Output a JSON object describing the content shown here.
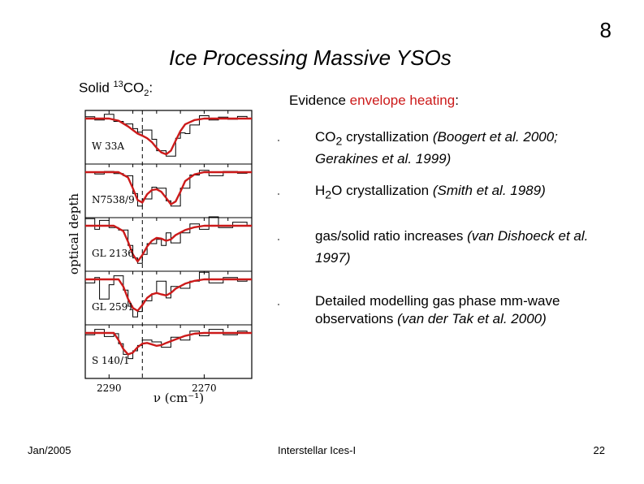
{
  "slide": {
    "number": "8",
    "title": "Ice Processing Massive YSOs"
  },
  "figure_label": {
    "prefix": "Solid ",
    "isotope": "13",
    "molecule": "CO",
    "subscript": "2",
    "suffix": ":"
  },
  "evidence": {
    "prefix": "Evidence ",
    "highlight": "envelope heating",
    "suffix": ":"
  },
  "bullets": [
    {
      "pre": "CO",
      "sub": "2",
      "post": " crystallization ",
      "cite": "(Boogert et al. 2000; Gerakines et al. 1999)"
    },
    {
      "pre": "H",
      "sub": "2",
      "post": "O crystallization ",
      "cite": "(Smith et al. 1989)"
    },
    {
      "pre": "gas/solid ratio increases  ",
      "sub": "",
      "post": "",
      "cite": "(van Dishoeck et al. 1997)"
    },
    {
      "pre": "Detailed modelling gas phase mm-wave observations ",
      "sub": "",
      "post": "",
      "cite": "(van der Tak et al. 2000)"
    }
  ],
  "footer": {
    "date": "Jan/2005",
    "course": "Interstellar Ices-I",
    "page": "22"
  },
  "colors": {
    "model_curve": "#cc1a1a",
    "highlight": "#cc1a1a"
  },
  "chart_data": {
    "type": "line",
    "title": "",
    "xlabel": "ν (cm⁻¹)",
    "ylabel": "optical depth",
    "x_reversed": true,
    "xlim": [
      2295,
      2260
    ],
    "xticks": [
      2290,
      2270
    ],
    "reference_line_x": 2283,
    "series": [
      {
        "name": "W 33A",
        "model": [
          [
            2295,
            0
          ],
          [
            2290,
            0
          ],
          [
            2288,
            0.06
          ],
          [
            2286,
            0.22
          ],
          [
            2284,
            0.42
          ],
          [
            2283,
            0.48
          ],
          [
            2282,
            0.55
          ],
          [
            2281,
            0.66
          ],
          [
            2280,
            0.82
          ],
          [
            2279,
            0.95
          ],
          [
            2278,
            1.0
          ],
          [
            2277,
            0.9
          ],
          [
            2276,
            0.62
          ],
          [
            2275,
            0.35
          ],
          [
            2274,
            0.16
          ],
          [
            2272,
            0.04
          ],
          [
            2270,
            0
          ],
          [
            2260,
            0
          ]
        ],
        "observed": [
          [
            2295,
            -0.05
          ],
          [
            2293,
            0.04
          ],
          [
            2291,
            -0.12
          ],
          [
            2289,
            0.08
          ],
          [
            2287,
            0.15
          ],
          [
            2285,
            0.28
          ],
          [
            2284,
            0.38
          ],
          [
            2283,
            0.32
          ],
          [
            2281,
            0.58
          ],
          [
            2280,
            0.9
          ],
          [
            2278,
            1.05
          ],
          [
            2276,
            0.55
          ],
          [
            2275,
            0.4
          ],
          [
            2274,
            0.42
          ],
          [
            2273,
            0.18
          ],
          [
            2271,
            -0.08
          ],
          [
            2269,
            0.04
          ],
          [
            2267,
            -0.04
          ],
          [
            2265,
            0.02
          ],
          [
            2263,
            -0.06
          ],
          [
            2261,
            0
          ]
        ]
      },
      {
        "name": "N7538/9",
        "model": [
          [
            2295,
            0
          ],
          [
            2288,
            0
          ],
          [
            2286,
            0.15
          ],
          [
            2285,
            0.45
          ],
          [
            2284,
            0.78
          ],
          [
            2283,
            0.85
          ],
          [
            2282,
            0.62
          ],
          [
            2281,
            0.5
          ],
          [
            2280,
            0.48
          ],
          [
            2279,
            0.55
          ],
          [
            2278,
            0.72
          ],
          [
            2277,
            0.9
          ],
          [
            2276,
            0.82
          ],
          [
            2275,
            0.55
          ],
          [
            2274,
            0.25
          ],
          [
            2272,
            0.06
          ],
          [
            2270,
            0
          ],
          [
            2260,
            0
          ]
        ],
        "observed": [
          [
            2295,
            0
          ],
          [
            2293,
            0.05
          ],
          [
            2291,
            -0.02
          ],
          [
            2289,
            0.04
          ],
          [
            2287,
            0.1
          ],
          [
            2285,
            0.6
          ],
          [
            2284,
            0.95
          ],
          [
            2283,
            0.75
          ],
          [
            2281,
            0.42
          ],
          [
            2280,
            0.45
          ],
          [
            2278,
            0.8
          ],
          [
            2277,
            0.95
          ],
          [
            2275,
            0.45
          ],
          [
            2273,
            0.08
          ],
          [
            2271,
            -0.05
          ],
          [
            2269,
            0.1
          ],
          [
            2266,
            -0.02
          ],
          [
            2263,
            0.03
          ],
          [
            2261,
            0
          ]
        ]
      },
      {
        "name": "GL 2136",
        "model": [
          [
            2295,
            0
          ],
          [
            2289,
            0
          ],
          [
            2287,
            0.15
          ],
          [
            2286,
            0.45
          ],
          [
            2285,
            0.8
          ],
          [
            2284,
            1.0
          ],
          [
            2283,
            0.82
          ],
          [
            2282,
            0.58
          ],
          [
            2281,
            0.42
          ],
          [
            2280,
            0.34
          ],
          [
            2279,
            0.36
          ],
          [
            2278,
            0.42
          ],
          [
            2277,
            0.38
          ],
          [
            2276,
            0.26
          ],
          [
            2274,
            0.12
          ],
          [
            2272,
            0.04
          ],
          [
            2270,
            0
          ],
          [
            2260,
            0
          ]
        ],
        "observed": [
          [
            2295,
            -0.2
          ],
          [
            2293,
            0.1
          ],
          [
            2292,
            -0.15
          ],
          [
            2290,
            0.05
          ],
          [
            2288,
            0.12
          ],
          [
            2286,
            0.55
          ],
          [
            2285,
            0.9
          ],
          [
            2284,
            1.05
          ],
          [
            2283,
            0.8
          ],
          [
            2282,
            0.5
          ],
          [
            2280,
            0.38
          ],
          [
            2279,
            0.55
          ],
          [
            2278,
            0.2
          ],
          [
            2277,
            0.48
          ],
          [
            2275,
            0.2
          ],
          [
            2273,
            -0.05
          ],
          [
            2271,
            0.1
          ],
          [
            2269,
            -0.25
          ],
          [
            2267,
            0.05
          ],
          [
            2264,
            -0.1
          ],
          [
            2261,
            0
          ]
        ]
      },
      {
        "name": "GL 2591",
        "model": [
          [
            2295,
            0
          ],
          [
            2288,
            0
          ],
          [
            2287,
            0.2
          ],
          [
            2286,
            0.55
          ],
          [
            2285,
            0.8
          ],
          [
            2284,
            0.88
          ],
          [
            2283,
            0.72
          ],
          [
            2282,
            0.52
          ],
          [
            2281,
            0.42
          ],
          [
            2280,
            0.38
          ],
          [
            2279,
            0.42
          ],
          [
            2278,
            0.45
          ],
          [
            2277,
            0.38
          ],
          [
            2276,
            0.26
          ],
          [
            2274,
            0.12
          ],
          [
            2272,
            0.04
          ],
          [
            2270,
            0
          ],
          [
            2260,
            0
          ]
        ],
        "observed": [
          [
            2295,
            0.1
          ],
          [
            2293,
            -0.05
          ],
          [
            2292,
            0.55
          ],
          [
            2290,
            0.15
          ],
          [
            2289,
            -0.1
          ],
          [
            2287,
            0.3
          ],
          [
            2286,
            0.75
          ],
          [
            2285,
            1.05
          ],
          [
            2284,
            0.9
          ],
          [
            2283,
            0.6
          ],
          [
            2281,
            0.4
          ],
          [
            2280,
            0.05
          ],
          [
            2278,
            0.52
          ],
          [
            2277,
            0.2
          ],
          [
            2275,
            0.25
          ],
          [
            2273,
            0.05
          ],
          [
            2271,
            -0.2
          ],
          [
            2269,
            0.1
          ],
          [
            2266,
            -0.05
          ],
          [
            2263,
            0.05
          ],
          [
            2261,
            0
          ]
        ]
      },
      {
        "name": "S 140/1",
        "model": [
          [
            2295,
            0
          ],
          [
            2289,
            0
          ],
          [
            2288,
            0.2
          ],
          [
            2287,
            0.45
          ],
          [
            2286,
            0.6
          ],
          [
            2285,
            0.55
          ],
          [
            2284,
            0.4
          ],
          [
            2283,
            0.3
          ],
          [
            2282,
            0.28
          ],
          [
            2281,
            0.32
          ],
          [
            2280,
            0.36
          ],
          [
            2279,
            0.34
          ],
          [
            2278,
            0.28
          ],
          [
            2276,
            0.18
          ],
          [
            2274,
            0.08
          ],
          [
            2272,
            0.02
          ],
          [
            2270,
            0
          ],
          [
            2260,
            0
          ]
        ],
        "observed": [
          [
            2295,
            0.05
          ],
          [
            2293,
            -0.1
          ],
          [
            2291,
            0.1
          ],
          [
            2289,
            0.02
          ],
          [
            2288,
            0.3
          ],
          [
            2287,
            0.6
          ],
          [
            2286,
            0.72
          ],
          [
            2285,
            0.5
          ],
          [
            2284,
            0.35
          ],
          [
            2283,
            0.2
          ],
          [
            2281,
            0.25
          ],
          [
            2279,
            0.4
          ],
          [
            2277,
            0.12
          ],
          [
            2275,
            0.2
          ],
          [
            2273,
            -0.05
          ],
          [
            2271,
            0.08
          ],
          [
            2269,
            -0.1
          ],
          [
            2266,
            0.05
          ],
          [
            2263,
            -0.05
          ],
          [
            2261,
            0
          ]
        ]
      }
    ]
  }
}
